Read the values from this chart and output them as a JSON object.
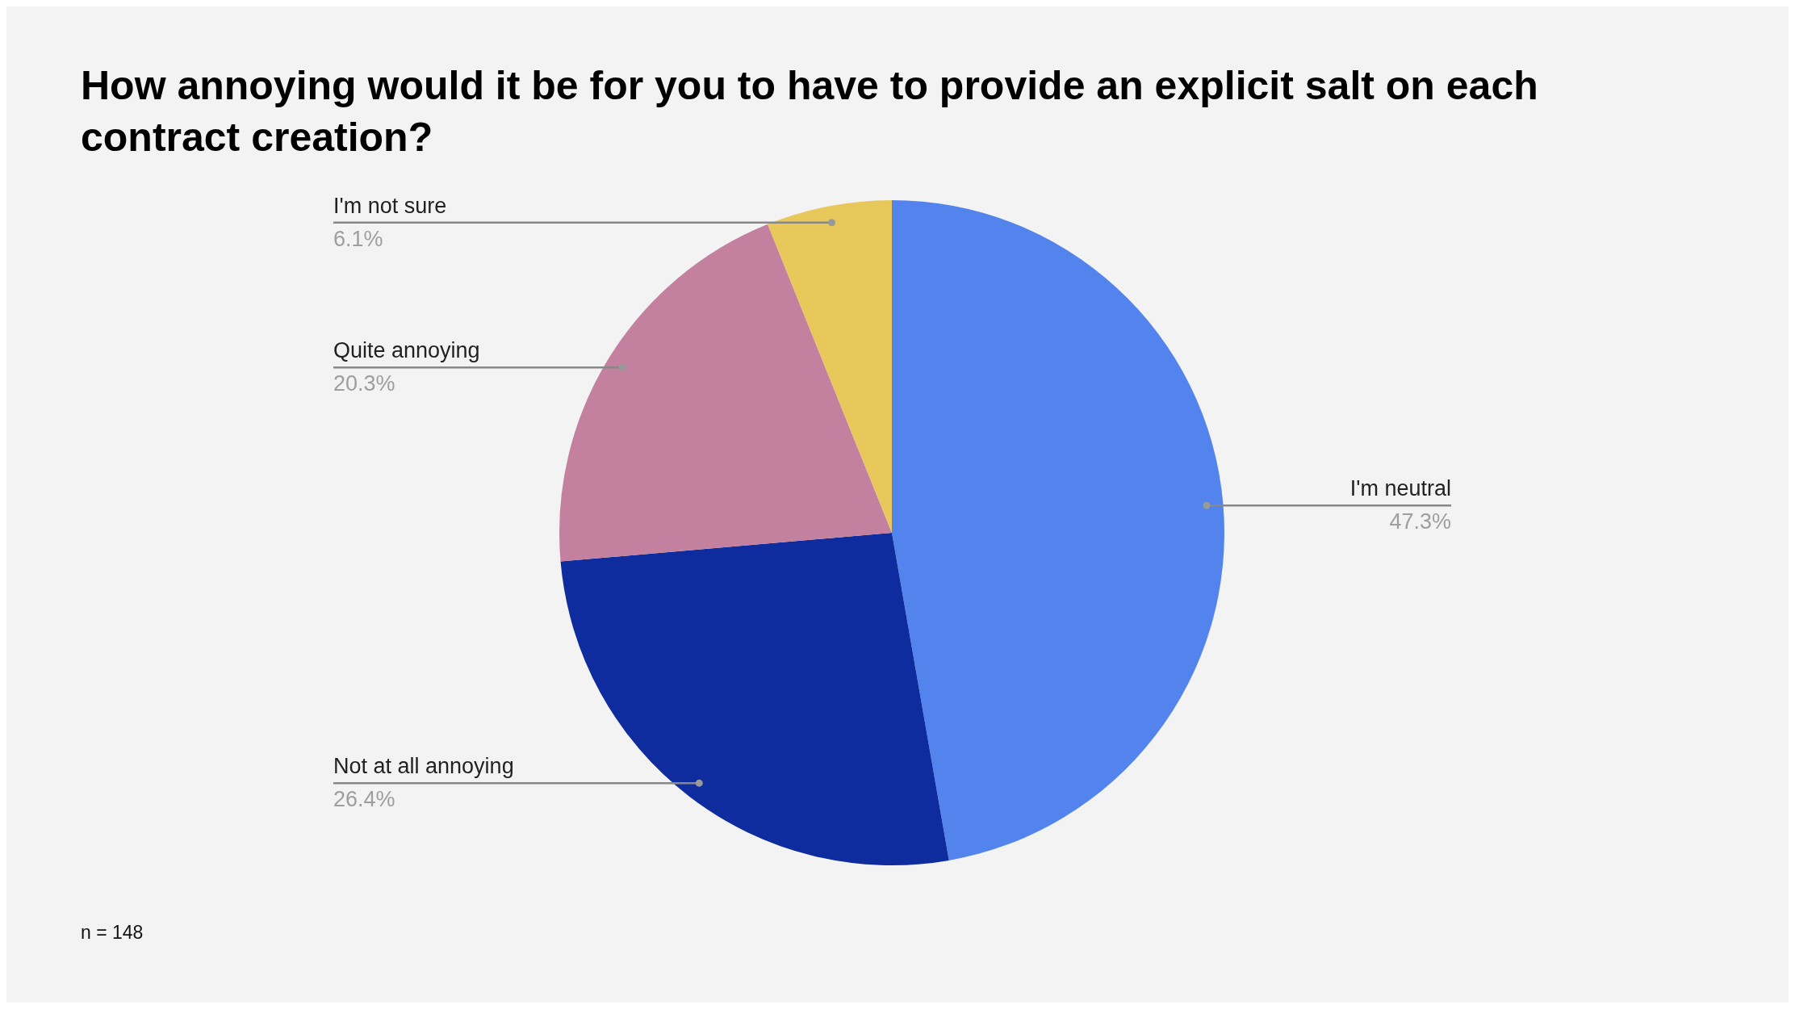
{
  "chart_data": {
    "type": "pie",
    "title": "How annoying would it be for you to have to provide an explicit salt on each contract creation?",
    "categories": [
      "I'm neutral",
      "Not at all annoying",
      "Quite annoying",
      "I'm not sure"
    ],
    "values": [
      47.3,
      26.4,
      20.3,
      6.1
    ],
    "colors": [
      "#5383ec",
      "#0f2c9e",
      "#c3819f",
      "#e8c85a"
    ],
    "value_labels": [
      "47.3%",
      "26.4%",
      "20.3%",
      "6.1%"
    ],
    "legend": false,
    "annotations": [
      "n = 148"
    ]
  }
}
